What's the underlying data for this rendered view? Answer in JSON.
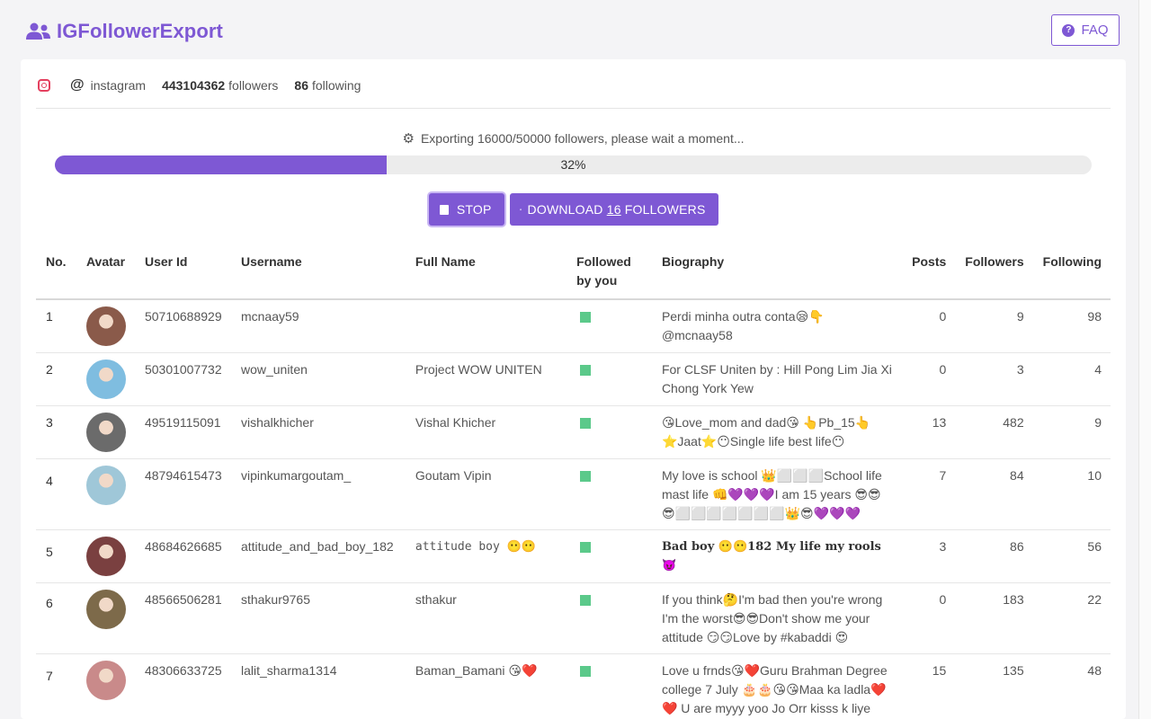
{
  "app": {
    "title": "IGFollowerExport",
    "faq_label": "FAQ",
    "brand_color": "#7e58d4",
    "logo_icon": "users-icon"
  },
  "profile": {
    "platform_icon": "instagram-icon",
    "username": "instagram",
    "followers_count": "443104362",
    "followers_label": "followers",
    "following_count": "86",
    "following_label": "following"
  },
  "export": {
    "status_text": "Exporting 16000/50000 followers, please wait a moment...",
    "progress_percent": 32,
    "progress_label": "32%",
    "stop_label": "STOP",
    "download_prefix": "DOWNLOAD",
    "download_count": "16",
    "download_suffix": "FOLLOWERS"
  },
  "table": {
    "headers": {
      "no": "No.",
      "avatar": "Avatar",
      "user_id": "User Id",
      "username": "Username",
      "full_name": "Full Name",
      "followed_line1": "Followed",
      "followed_line2": "by you",
      "biography": "Biography",
      "posts": "Posts",
      "followers": "Followers",
      "following": "Following"
    },
    "rows": [
      {
        "no": "1",
        "user_id": "50710688929",
        "username": "mcnaay59",
        "full_name": "",
        "followed": true,
        "biography": "Perdi minha outra conta😪👇@mcnaay58",
        "posts": "0",
        "followers": "9",
        "following": "98",
        "avatar_color": "#8a5a4a"
      },
      {
        "no": "2",
        "user_id": "50301007732",
        "username": "wow_uniten",
        "full_name": "Project WOW UNITEN",
        "followed": true,
        "biography": "For CLSF Uniten by : Hill Pong Lim Jia Xi Chong York Yew",
        "posts": "0",
        "followers": "3",
        "following": "4",
        "avatar_color": "#7fbde0"
      },
      {
        "no": "3",
        "user_id": "49519115091",
        "username": "vishalkhicher",
        "full_name": "Vishal Khicher",
        "followed": true,
        "biography": "😘Love_mom and dad😘 👆Pb_15👆 ⭐Jaat⭐😶Single life best life😶",
        "posts": "13",
        "followers": "482",
        "following": "9",
        "avatar_color": "#6b6b6b"
      },
      {
        "no": "4",
        "user_id": "48794615473",
        "username": "vipinkumargoutam_",
        "full_name": "Goutam Vipin",
        "followed": true,
        "biography": "My love is school 👑⬜⬜⬜School life mast life 👊💜💜💜I am 15 years 😎😎😎⬜⬜⬜⬜⬜⬜⬜👑😎💜💜💜",
        "posts": "7",
        "followers": "84",
        "following": "10",
        "avatar_color": "#9fc7d8"
      },
      {
        "no": "5",
        "user_id": "48684626685",
        "username": "attitude_and_bad_boy_182",
        "full_name": "attitude boy 😶😶",
        "followed": true,
        "biography": "Bad boy 😶😶182 My life my rools 😈",
        "posts": "3",
        "followers": "86",
        "following": "56",
        "avatar_color": "#7a4040"
      },
      {
        "no": "6",
        "user_id": "48566506281",
        "username": "sthakur9765",
        "full_name": "sthakur",
        "followed": true,
        "biography": "If you think🤔I'm bad then you're wrong I'm the worst😎😎Don't show me your attitude 😏😏Love by #kabaddi 😍",
        "posts": "0",
        "followers": "183",
        "following": "22",
        "avatar_color": "#7d6a4a"
      },
      {
        "no": "7",
        "user_id": "48306633725",
        "username": "lalit_sharma1314",
        "full_name": "Baman_Bamani 😘❤️",
        "followed": true,
        "biography": "Love u frnds😘❤️Guru Brahman Degree college 7 July 🎂🎂😘😘Maa ka ladla❤️❤️ U are myyy yoo Jo Orr kisss k liye nooo",
        "posts": "15",
        "followers": "135",
        "following": "48",
        "avatar_color": "#c98a8a"
      }
    ]
  }
}
